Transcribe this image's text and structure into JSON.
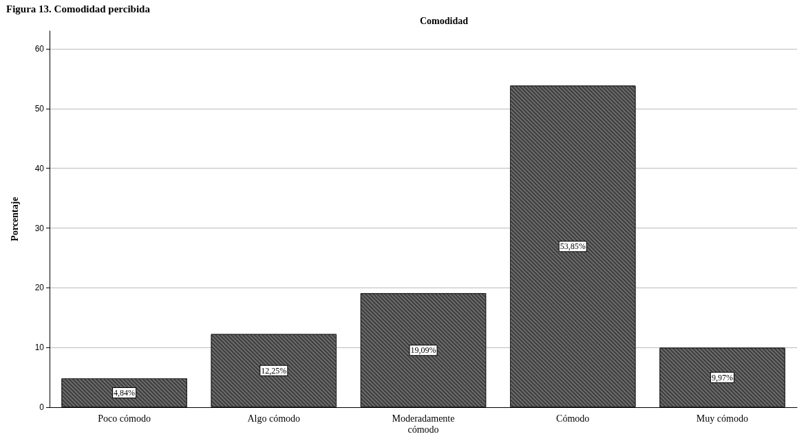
{
  "chart_data": {
    "type": "bar",
    "title": "Comodidad",
    "ylabel": "Porcentaje",
    "annotations": [
      "Figura 13. Comodidad percibida"
    ],
    "categories": [
      "Poco cómodo",
      "Algo cómodo",
      "Moderadamente\ncómodo",
      "Cómodo",
      "Muy cómodo"
    ],
    "values": [
      4.84,
      12.25,
      19.09,
      53.85,
      9.97
    ],
    "value_labels": [
      "4,84%",
      "12,25%",
      "19,09%",
      "53,85%",
      "9,97%"
    ],
    "color": "#3c3c3c",
    "ylim": [
      0,
      63
    ],
    "yticks": [
      0,
      10,
      20,
      30,
      40,
      50,
      60
    ],
    "grid": "y"
  }
}
